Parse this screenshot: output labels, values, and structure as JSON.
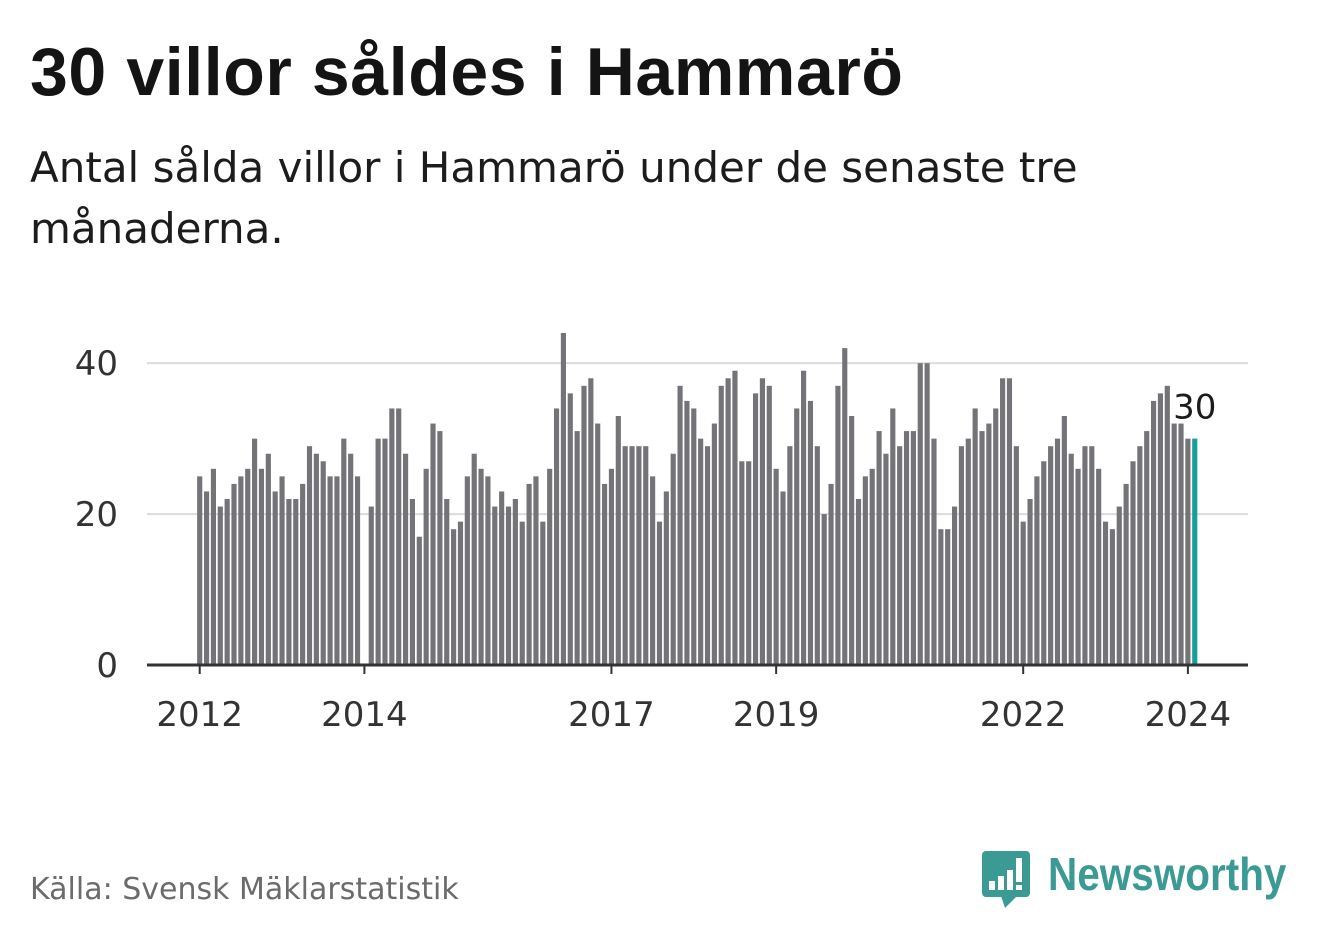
{
  "colors": {
    "bar": "#747378",
    "highlight": "#17a098",
    "grid": "#dcdcdc",
    "axis": "#333333",
    "tick_text": "#333333"
  },
  "brand": {
    "name": "Newsworthy",
    "icon": "newsworthy-logo-icon",
    "color": "#3c9a94"
  },
  "chart_data": {
    "type": "bar",
    "title": "30 villor såldes i Hammarö",
    "subtitle": "Antal sålda villor i Hammarö under de senaste tre månaderna.",
    "source": "Källa: Svensk Mäklarstatistik",
    "start_year": 2012,
    "start_month": 1,
    "values": [
      25,
      23,
      26,
      21,
      22,
      24,
      25,
      26,
      30,
      26,
      28,
      23,
      25,
      22,
      22,
      24,
      29,
      28,
      27,
      25,
      25,
      30,
      28,
      25,
      null,
      21,
      30,
      30,
      34,
      34,
      28,
      22,
      17,
      26,
      32,
      31,
      22,
      18,
      19,
      25,
      28,
      26,
      25,
      21,
      23,
      21,
      22,
      19,
      24,
      25,
      19,
      26,
      34,
      44,
      36,
      31,
      37,
      38,
      32,
      24,
      26,
      33,
      29,
      29,
      29,
      29,
      25,
      19,
      23,
      28,
      37,
      35,
      34,
      30,
      29,
      32,
      37,
      38,
      39,
      27,
      27,
      36,
      38,
      37,
      26,
      23,
      29,
      34,
      39,
      35,
      29,
      20,
      24,
      37,
      42,
      33,
      22,
      25,
      26,
      31,
      28,
      34,
      29,
      31,
      31,
      40,
      40,
      30,
      18,
      18,
      21,
      29,
      30,
      34,
      31,
      32,
      34,
      38,
      38,
      29,
      19,
      22,
      25,
      27,
      29,
      30,
      33,
      28,
      26,
      29,
      29,
      26,
      19,
      18,
      21,
      24,
      27,
      29,
      31,
      35,
      36,
      37,
      32,
      32,
      30,
      30
    ],
    "xticks": [
      "2012",
      "2014",
      "2017",
      "2019",
      "2022",
      "2024"
    ],
    "yticks": [
      0,
      20,
      40
    ],
    "xlim": [
      2011.36,
      2024.73
    ],
    "ylim": [
      0,
      44
    ],
    "grid": true,
    "highlight_label": "30"
  }
}
